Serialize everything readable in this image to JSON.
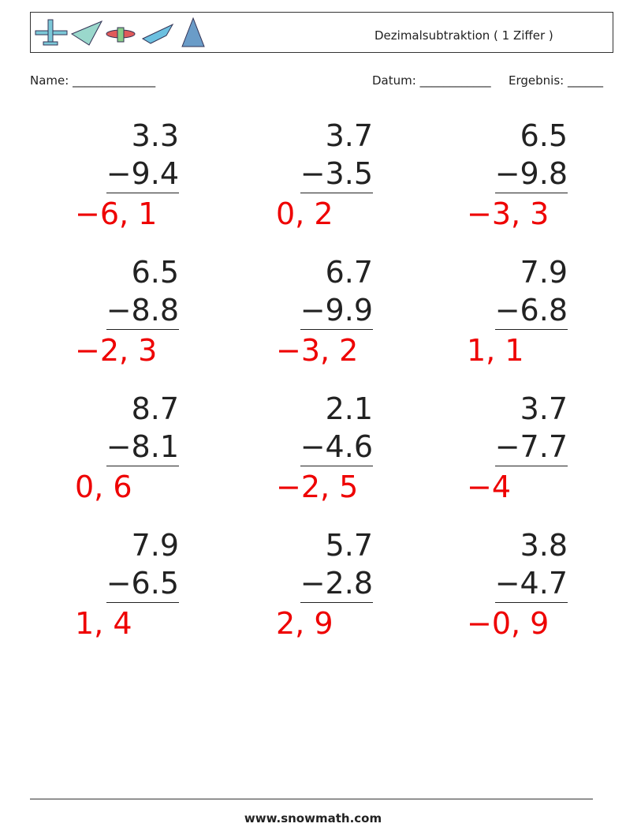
{
  "header": {
    "title": "Dezimalsubtraktion ( 1 Ziffer )"
  },
  "fields": {
    "name": "Name: ______________",
    "date": "Datum: ____________",
    "result": "Ergebnis: ______"
  },
  "problems": [
    {
      "top": "3.3",
      "bottom": "−9.4",
      "answer": "−6, 1"
    },
    {
      "top": "3.7",
      "bottom": "−3.5",
      "answer": "0, 2"
    },
    {
      "top": "6.5",
      "bottom": "−9.8",
      "answer": "−3, 3"
    },
    {
      "top": "6.5",
      "bottom": "−8.8",
      "answer": "−2, 3"
    },
    {
      "top": "6.7",
      "bottom": "−9.9",
      "answer": "−3, 2"
    },
    {
      "top": "7.9",
      "bottom": "−6.8",
      "answer": "1, 1"
    },
    {
      "top": "8.7",
      "bottom": "−8.1",
      "answer": "0, 6"
    },
    {
      "top": "2.1",
      "bottom": "−4.6",
      "answer": "−2, 5"
    },
    {
      "top": "3.7",
      "bottom": "−7.7",
      "answer": "−4"
    },
    {
      "top": "7.9",
      "bottom": "−6.5",
      "answer": "1, 4"
    },
    {
      "top": "5.7",
      "bottom": "−2.8",
      "answer": "2, 9"
    },
    {
      "top": "3.8",
      "bottom": "−4.7",
      "answer": "−0, 9"
    }
  ],
  "footer": {
    "url": "www.snowmath.com"
  }
}
